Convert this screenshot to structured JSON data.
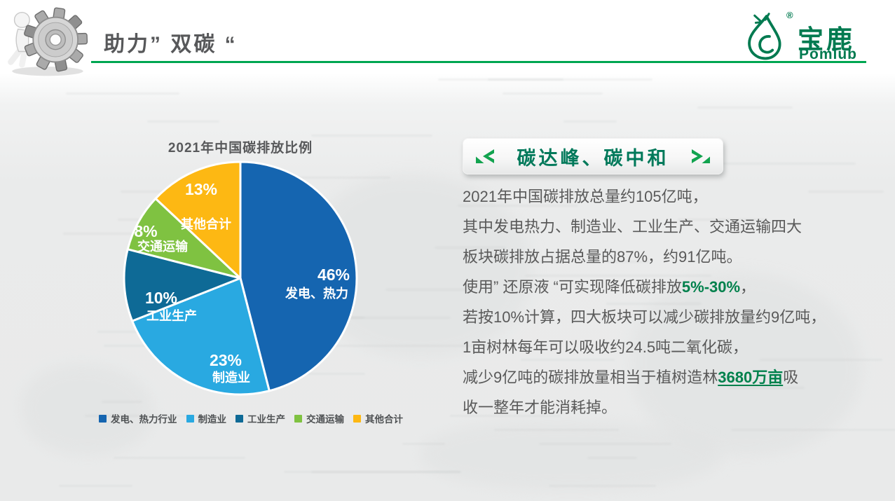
{
  "header": {
    "title": "助力” 双碳 “"
  },
  "logo": {
    "cn": "宝鹿",
    "en": "Pomlub",
    "reg": "®",
    "color": "#007a50"
  },
  "icons": {
    "header_image": "figure-pushing-gear-3d",
    "logo_icon": "deer-droplet-mark",
    "heading_left": "double-chevron-left",
    "heading_right": "double-chevron-right"
  },
  "chart_data": {
    "type": "pie",
    "title": "2021年中国碳排放比例",
    "legend_position": "bottom",
    "start_angle_deg_from_top": 0,
    "direction": "clockwise",
    "slices": [
      {
        "label": "发电、热力",
        "legend_label": "发电、热力行业",
        "value": 46,
        "pct": "46%",
        "color": "#1565b0"
      },
      {
        "label": "制造业",
        "legend_label": "制造业",
        "value": 23,
        "pct": "23%",
        "color": "#29a9e1"
      },
      {
        "label": "工业生产",
        "legend_label": "工业生产",
        "value": 10,
        "pct": "10%",
        "color": "#0e6a96"
      },
      {
        "label": "交通运输",
        "legend_label": "交通运输",
        "value": 8,
        "pct": "8%",
        "color": "#7fc241"
      },
      {
        "label": "其他合计",
        "legend_label": "其他合计",
        "value": 13,
        "pct": "13%",
        "color": "#fdb813"
      }
    ]
  },
  "right_panel": {
    "heading": "碳达峰、碳中和",
    "paragraph_lines": [
      [
        {
          "t": "2021年中国碳排放总量约105亿吨，"
        }
      ],
      [
        {
          "t": "其中发电热力、制造业、工业生产、交通运输四大"
        }
      ],
      [
        {
          "t": "板块碳排放占据总量的87%，约91亿吨。"
        }
      ],
      [
        {
          "t": "使用” 还原液 “可实现降低碳排放"
        },
        {
          "t": "5%-30%",
          "s": "g"
        },
        {
          "t": "，"
        }
      ],
      [
        {
          "t": "若按10%计算，四大板块可以减少碳排放量约9亿吨，"
        }
      ],
      [
        {
          "t": "1亩树林每年可以吸收约24.5吨二氧化碳，"
        }
      ],
      [
        {
          "t": "减少9亿吨的碳排放量相当于植树造林"
        },
        {
          "t": "3680万亩",
          "s": "gu"
        },
        {
          "t": "吸"
        }
      ],
      [
        {
          "t": "收一整年才能消耗掉。"
        }
      ]
    ]
  },
  "colors": {
    "accent_green": "#00a651",
    "heading_green": "#00795a",
    "title_gray": "#57585a",
    "body_gray": "#595959",
    "highlight_green": "#00814c"
  }
}
